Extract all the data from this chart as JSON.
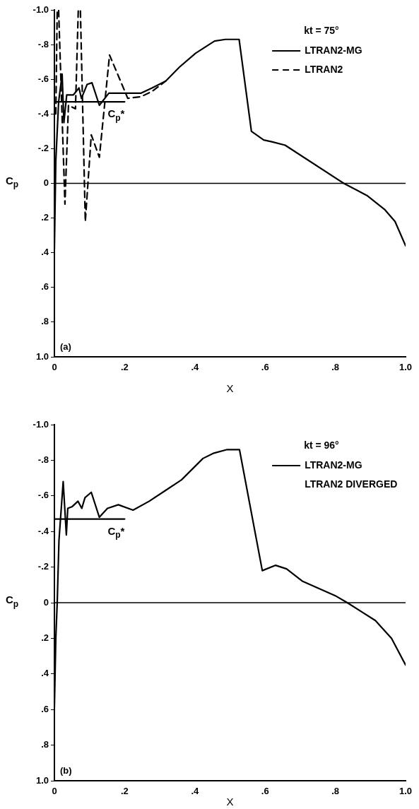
{
  "chart_data": [
    {
      "type": "line",
      "legend_title": "kt = 75°",
      "xlabel": "X",
      "ylabel": "C$_{p}$",
      "legend": "top right",
      "marker": "none",
      "xlim": [
        0,
        1.0
      ],
      "xticks": [
        0,
        {
          "value": 0.2,
          "label": ".2"
        },
        {
          "value": 0.4,
          "label": ".4"
        },
        {
          "value": 0.6,
          "label": ".6"
        },
        {
          "value": 0.8,
          "label": ".8"
        },
        {
          "value": 1.0,
          "label": "1.0"
        }
      ],
      "ylim": [
        1.0,
        -1.0
      ],
      "yticks": [
        {
          "value": -1.0,
          "label": "-1.0"
        },
        {
          "value": -0.8,
          "label": "-.8"
        },
        {
          "value": -0.6,
          "label": "-.6"
        },
        {
          "value": -0.4,
          "label": "-.4"
        },
        {
          "value": -0.2,
          "label": "-.2"
        },
        0,
        {
          "value": 0.2,
          "label": ".2"
        },
        {
          "value": 0.4,
          "label": ".4"
        },
        {
          "value": 0.6,
          "label": ".6"
        },
        {
          "value": 0.8,
          "label": ".8"
        },
        {
          "value": 1.0,
          "label": "1.0"
        }
      ],
      "ref_lines": [
        {
          "axis": "y",
          "value": 0
        }
      ],
      "annotations": [
        {
          "text": "C$_{p}$*",
          "x": 0.2,
          "y": -0.47
        },
        "(a)"
      ],
      "series": [
        {
          "name": "LTRAN2-MG",
          "color": "#000000",
          "x": [
            0,
            0.004,
            0.012,
            0.022,
            0.027,
            0.035,
            0.054,
            0.07,
            0.077,
            0.093,
            0.107,
            0.128,
            0.155,
            0.209,
            0.247,
            0.278,
            0.317,
            0.356,
            0.402,
            0.456,
            0.487,
            0.526,
            0.561,
            0.596,
            0.619,
            0.657,
            0.824,
            0.89,
            0.94,
            0.97,
            1.0
          ],
          "values": [
            0.38,
            -0.13,
            -0.47,
            -0.63,
            -0.35,
            -0.51,
            -0.51,
            -0.55,
            -0.49,
            -0.57,
            -0.58,
            -0.45,
            -0.52,
            -0.52,
            -0.52,
            -0.55,
            -0.59,
            -0.67,
            -0.75,
            -0.82,
            -0.83,
            -0.83,
            -0.3,
            -0.25,
            -0.24,
            -0.22,
            0,
            0.07,
            0.15,
            0.22,
            0.36
          ]
        },
        {
          "name": "LTRAN2",
          "color": "#000000",
          "line_style": "dashed",
          "x": [
            0.004,
            0.008,
            0.012,
            0.03,
            0.04,
            0.06,
            0.068,
            0.074,
            0.088,
            0.105,
            0.128,
            0.157,
            0.209,
            0.247,
            0.278,
            0.317
          ],
          "values": [
            -0.4,
            -1.0,
            -1.0,
            0.12,
            -0.45,
            -0.43,
            -1.0,
            -1.0,
            0.22,
            -0.28,
            -0.15,
            -0.74,
            -0.49,
            -0.5,
            -0.53,
            -0.59
          ]
        },
        {
          "color": "#000000",
          "x": [
            0,
            0.2
          ],
          "values": [
            -0.47,
            -0.47
          ]
        }
      ]
    },
    {
      "type": "line",
      "legend_title": "kt = 96°",
      "xlabel": "X",
      "ylabel": "C$_{p}$",
      "legend": "top right",
      "marker": "none",
      "xlim": [
        0,
        1.0
      ],
      "xticks": [
        0,
        {
          "value": 0.2,
          "label": ".2"
        },
        {
          "value": 0.4,
          "label": ".4"
        },
        {
          "value": 0.6,
          "label": ".6"
        },
        {
          "value": 0.8,
          "label": ".8"
        },
        {
          "value": 1.0,
          "label": "1.0"
        }
      ],
      "ylim": [
        1.0,
        -1.0
      ],
      "yticks": [
        {
          "value": -1.0,
          "label": "-1.0"
        },
        {
          "value": -0.8,
          "label": "-.8"
        },
        {
          "value": -0.6,
          "label": "-.6"
        },
        {
          "value": -0.4,
          "label": "-.4"
        },
        {
          "value": -0.2,
          "label": "-.2"
        },
        0,
        {
          "value": 0.2,
          "label": ".2"
        },
        {
          "value": 0.4,
          "label": ".4"
        },
        {
          "value": 0.6,
          "label": ".6"
        },
        {
          "value": 0.8,
          "label": ".8"
        },
        {
          "value": 1.0,
          "label": "1.0"
        }
      ],
      "ref_lines": [
        {
          "axis": "y",
          "value": 0
        }
      ],
      "annotations": [
        {
          "text": "C$_{p}$*",
          "x": 0.2,
          "y": -0.47
        },
        "LTRAN2 DIVERGED",
        "(b)"
      ],
      "series": [
        {
          "name": "LTRAN2-MG",
          "color": "#000000",
          "x": [
            0,
            0.004,
            0.008,
            0.013,
            0.025,
            0.034,
            0.038,
            0.051,
            0.067,
            0.078,
            0.087,
            0.105,
            0.128,
            0.151,
            0.182,
            0.224,
            0.27,
            0.316,
            0.362,
            0.423,
            0.454,
            0.492,
            0.527,
            0.592,
            0.63,
            0.661,
            0.707,
            0.799,
            0.834,
            0.914,
            0.96,
            1.0
          ],
          "values": [
            0.59,
            0.2,
            0,
            -0.35,
            -0.68,
            -0.38,
            -0.53,
            -0.54,
            -0.57,
            -0.53,
            -0.59,
            -0.62,
            -0.48,
            -0.53,
            -0.55,
            -0.52,
            -0.57,
            -0.63,
            -0.69,
            -0.81,
            -0.84,
            -0.86,
            -0.86,
            -0.18,
            -0.21,
            -0.19,
            -0.12,
            -0.04,
            0,
            0.1,
            0.2,
            0.35
          ]
        },
        {
          "color": "#000000",
          "x": [
            0,
            0.2
          ],
          "values": [
            -0.47,
            -0.47
          ]
        }
      ]
    }
  ]
}
